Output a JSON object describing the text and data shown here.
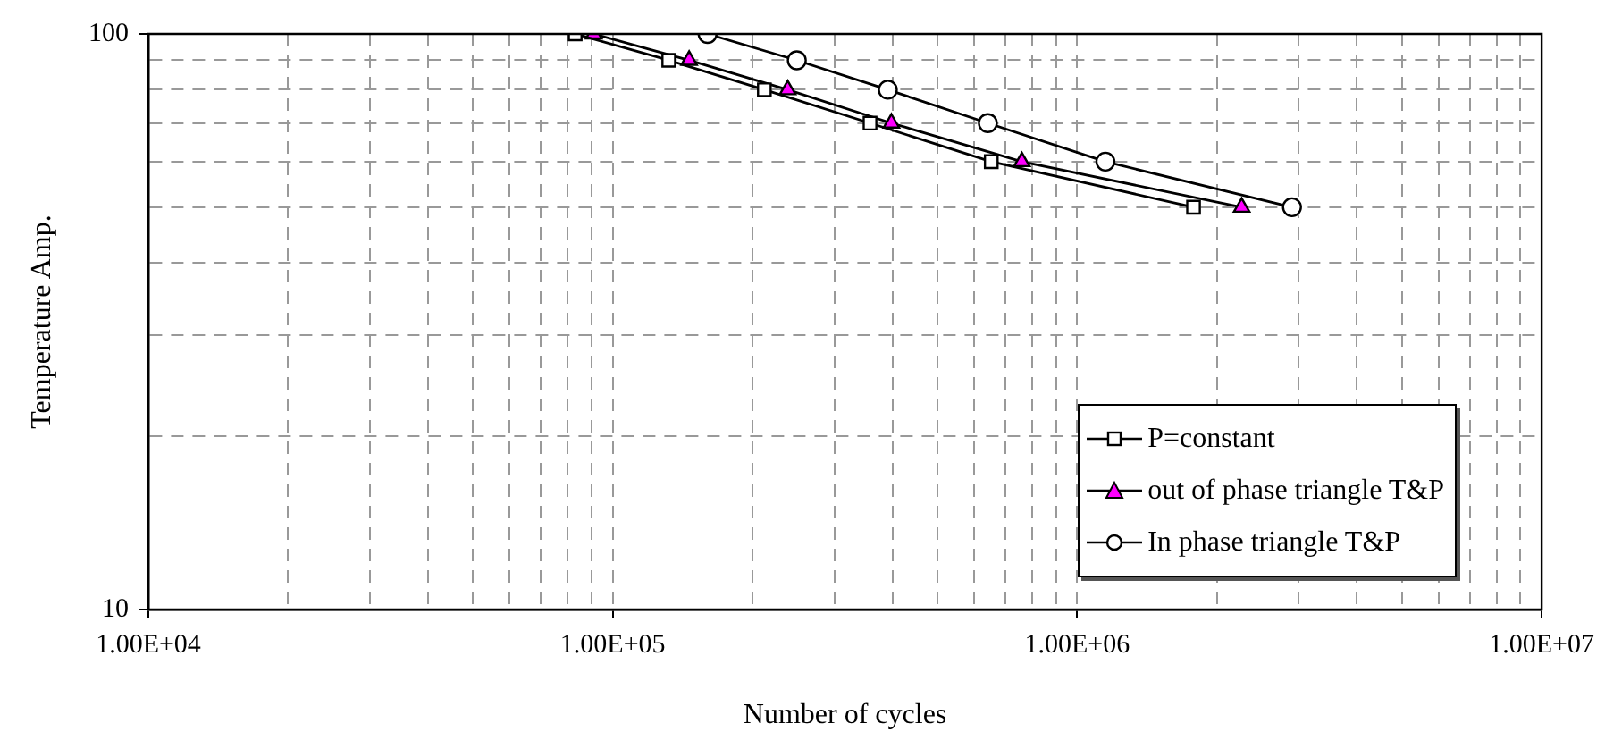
{
  "chart_data": {
    "type": "line",
    "xlabel": "Number of cycles",
    "ylabel": "Temperature Amp.",
    "log": "xy",
    "grid": true,
    "legend": "bottom right",
    "xlim": [
      10000,
      10000000
    ],
    "ylim": [
      10,
      100
    ],
    "xticks": [
      {
        "value": 10000,
        "label": "1.00E+04"
      },
      {
        "value": 20000,
        "label": null
      },
      {
        "value": 30000,
        "label": null
      },
      {
        "value": 40000,
        "label": null
      },
      {
        "value": 50000,
        "label": null
      },
      {
        "value": 60000,
        "label": null
      },
      {
        "value": 70000,
        "label": null
      },
      {
        "value": 80000,
        "label": null
      },
      {
        "value": 90000,
        "label": null
      },
      {
        "value": 100000,
        "label": "1.00E+05"
      },
      {
        "value": 200000,
        "label": null
      },
      {
        "value": 300000,
        "label": null
      },
      {
        "value": 400000,
        "label": null
      },
      {
        "value": 500000,
        "label": null
      },
      {
        "value": 600000,
        "label": null
      },
      {
        "value": 700000,
        "label": null
      },
      {
        "value": 800000,
        "label": null
      },
      {
        "value": 900000,
        "label": null
      },
      {
        "value": 1000000,
        "label": "1.00E+06"
      },
      {
        "value": 2000000,
        "label": null
      },
      {
        "value": 3000000,
        "label": null
      },
      {
        "value": 4000000,
        "label": null
      },
      {
        "value": 5000000,
        "label": null
      },
      {
        "value": 6000000,
        "label": null
      },
      {
        "value": 7000000,
        "label": null
      },
      {
        "value": 8000000,
        "label": null
      },
      {
        "value": 9000000,
        "label": null
      },
      {
        "value": 10000000,
        "label": "1.00E+07"
      }
    ],
    "yticks": [
      10,
      {
        "value": 20,
        "label": null
      },
      {
        "value": 30,
        "label": null
      },
      {
        "value": 40,
        "label": null
      },
      {
        "value": 50,
        "label": null
      },
      {
        "value": 60,
        "label": null
      },
      {
        "value": 70,
        "label": null
      },
      {
        "value": 80,
        "label": null
      },
      {
        "value": 90,
        "label": null
      },
      100
    ],
    "series": [
      {
        "name": "P=constant",
        "color": "#000000",
        "marker": "square",
        "x": [
          83000,
          132000,
          212000,
          358000,
          653000,
          1780000
        ],
        "values": [
          100,
          90,
          80,
          70,
          60,
          50
        ]
      },
      {
        "name": "out of phase triangle T&P",
        "color": "#ff00ff",
        "marker": "triangle",
        "x": [
          91000,
          146000,
          238000,
          398000,
          760000,
          2260000
        ],
        "values": [
          100,
          90,
          80,
          70,
          60,
          50
        ]
      },
      {
        "name": "In phase triangle T&P",
        "color": "#000000",
        "marker": "circle",
        "x": [
          160000,
          249000,
          391000,
          642000,
          1150000,
          2900000
        ],
        "values": [
          100,
          90,
          80,
          70,
          60,
          50
        ]
      }
    ]
  }
}
